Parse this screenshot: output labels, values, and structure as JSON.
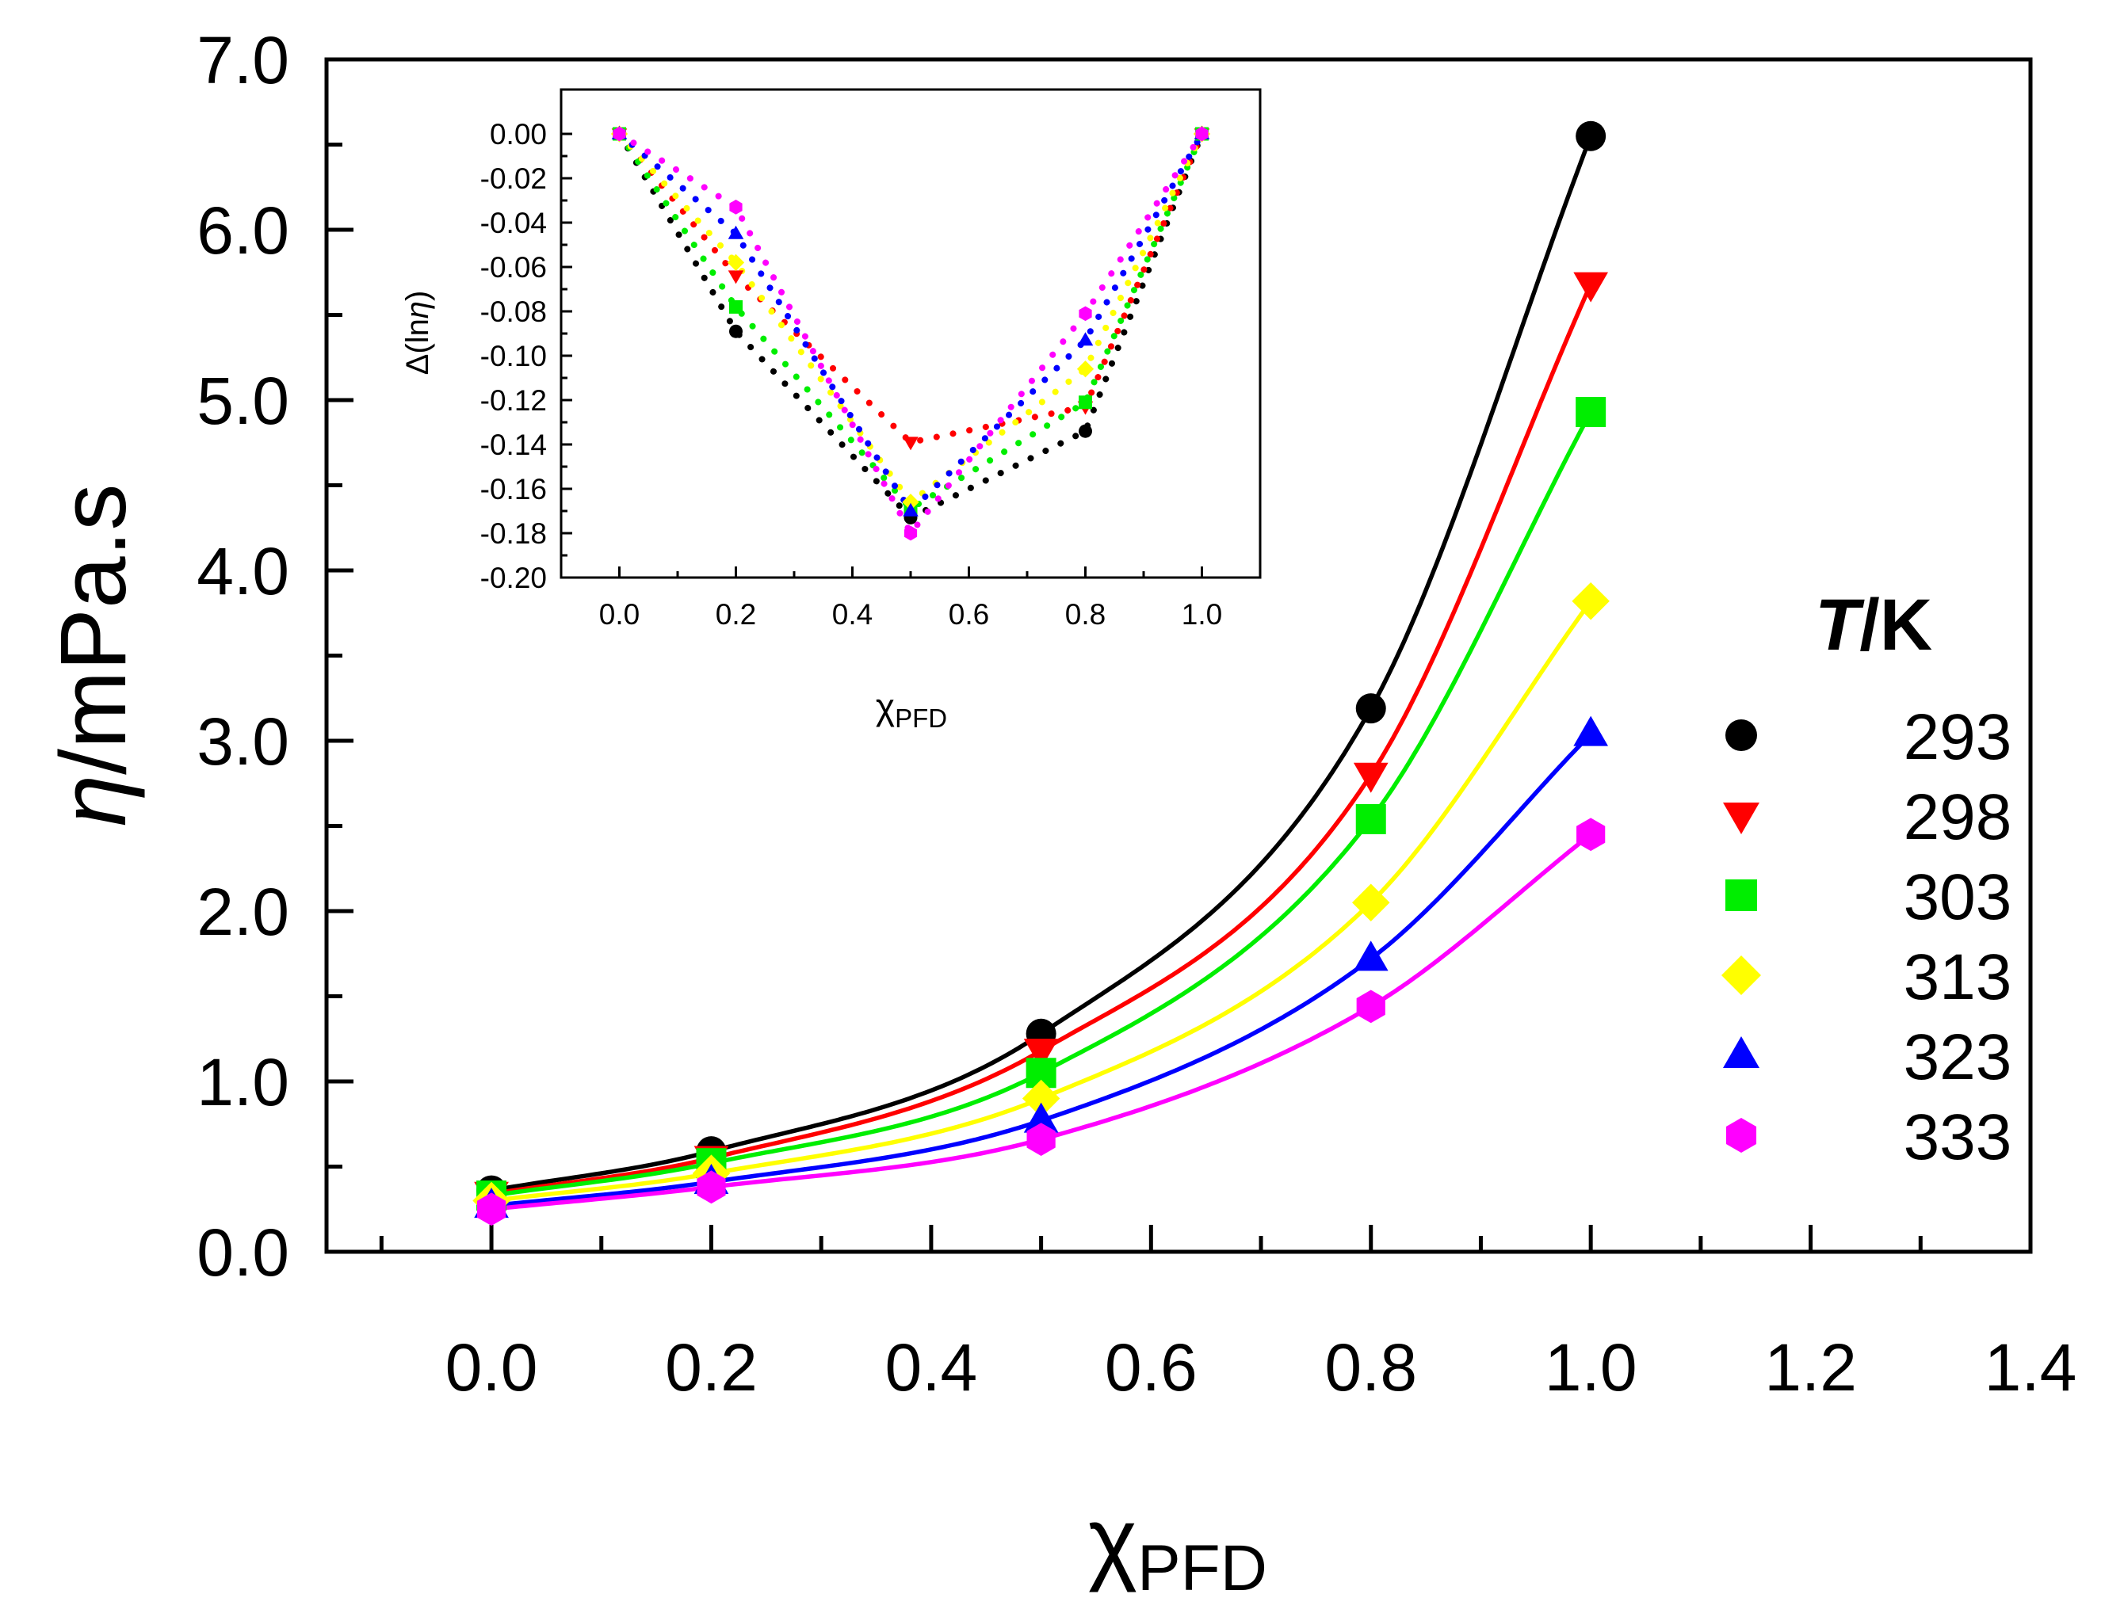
{
  "chart_data": [
    {
      "type": "scatter",
      "panel": "main",
      "ylabel_symbol": "η",
      "ylabel_unit": "/mPa.s",
      "xlabel_main": "χ",
      "xlabel_sub": "PFD",
      "xlim": [
        -0.15,
        1.4
      ],
      "ylim": [
        0.0,
        7.0
      ],
      "x_ticks": [
        0.0,
        0.2,
        0.4,
        0.6,
        0.8,
        1.0,
        1.2,
        1.4
      ],
      "x_tick_labels": [
        "0.0",
        "0.2",
        "0.4",
        "0.6",
        "0.8",
        "1.0",
        "1.2",
        "1.4"
      ],
      "y_ticks": [
        0.0,
        1.0,
        2.0,
        3.0,
        4.0,
        5.0,
        6.0,
        7.0
      ],
      "y_tick_labels": [
        "0.0",
        "1.0",
        "2.0",
        "3.0",
        "4.0",
        "5.0",
        "6.0",
        "7.0"
      ],
      "grid": false,
      "legend_title": "T/K",
      "legend_title_italic": "T",
      "legend_title_rest": "/K",
      "legend_position": "right",
      "fit_lines": true,
      "x": [
        0.0,
        0.2,
        0.5,
        0.8,
        1.0
      ],
      "series": [
        {
          "name": "293",
          "color": "#000000",
          "marker": "circle",
          "values": [
            0.36,
            0.59,
            1.28,
            3.19,
            6.55
          ]
        },
        {
          "name": "298",
          "color": "#ff0000",
          "marker": "triangle-down",
          "values": [
            0.34,
            0.55,
            1.18,
            2.8,
            5.68
          ]
        },
        {
          "name": "303",
          "color": "#00ee00",
          "marker": "square",
          "values": [
            0.33,
            0.52,
            1.05,
            2.54,
            4.93
          ]
        },
        {
          "name": "313",
          "color": "#ffff00",
          "marker": "diamond",
          "values": [
            0.3,
            0.46,
            0.9,
            2.05,
            3.82
          ]
        },
        {
          "name": "323",
          "color": "#0000ff",
          "marker": "triangle-up",
          "values": [
            0.27,
            0.41,
            0.77,
            1.72,
            3.04
          ]
        },
        {
          "name": "333",
          "color": "#ff00ff",
          "marker": "hexagon",
          "values": [
            0.25,
            0.38,
            0.66,
            1.44,
            2.45
          ]
        }
      ]
    },
    {
      "type": "scatter",
      "panel": "inset",
      "ylabel": "Δ(lnη)",
      "ylabel_pre": "Δ(ln",
      "ylabel_sym": "η",
      "ylabel_post": ")",
      "xlabel_main": "χ",
      "xlabel_sub": "PFD",
      "xlim": [
        -0.1,
        1.1
      ],
      "ylim": [
        -0.2,
        0.02
      ],
      "x_ticks": [
        0.0,
        0.2,
        0.4,
        0.6,
        0.8,
        1.0
      ],
      "x_tick_labels": [
        "0.0",
        "0.2",
        "0.4",
        "0.6",
        "0.8",
        "1.0"
      ],
      "y_ticks": [
        0.0,
        -0.02,
        -0.04,
        -0.06,
        -0.08,
        -0.1,
        -0.12,
        -0.14,
        -0.16,
        -0.18,
        -0.2
      ],
      "y_tick_labels": [
        "0.00",
        "-0.02",
        "-0.04",
        "-0.06",
        "-0.08",
        "-0.10",
        "-0.12",
        "-0.14",
        "-0.16",
        "-0.18",
        "-0.20"
      ],
      "grid": false,
      "x": [
        0.0,
        0.2,
        0.5,
        0.8,
        1.0
      ],
      "series": [
        {
          "name": "293",
          "color": "#000000",
          "marker": "circle",
          "values": [
            0.0,
            -0.089,
            -0.173,
            -0.134,
            0.0
          ]
        },
        {
          "name": "298",
          "color": "#ff0000",
          "marker": "triangle-down",
          "values": [
            0.0,
            -0.064,
            -0.139,
            -0.123,
            0.0
          ]
        },
        {
          "name": "303",
          "color": "#00ee00",
          "marker": "square",
          "values": [
            0.0,
            -0.078,
            -0.169,
            -0.121,
            0.0
          ]
        },
        {
          "name": "313",
          "color": "#ffff00",
          "marker": "diamond",
          "values": [
            0.0,
            -0.058,
            -0.166,
            -0.106,
            0.0
          ]
        },
        {
          "name": "323",
          "color": "#0000ff",
          "marker": "triangle-up",
          "values": [
            0.0,
            -0.045,
            -0.17,
            -0.093,
            0.0
          ]
        },
        {
          "name": "333",
          "color": "#ff00ff",
          "marker": "hexagon",
          "values": [
            0.0,
            -0.033,
            -0.18,
            -0.081,
            0.0
          ]
        }
      ]
    }
  ]
}
